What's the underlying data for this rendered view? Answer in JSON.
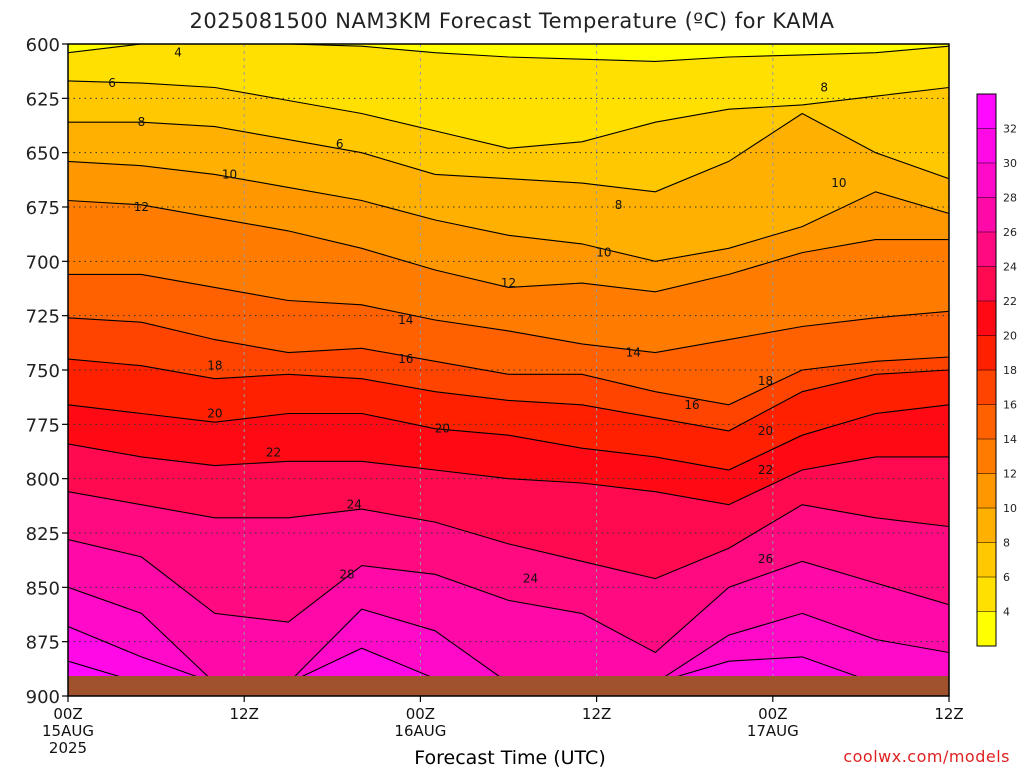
{
  "chart_data": {
    "type": "heatmap",
    "title": "2025081500 NAM3KM Forecast Temperature (ºC) for KAMA",
    "xlabel": "Forecast Time (UTC)",
    "ylabel": "",
    "source": "coolwx.com/models",
    "y_axis": {
      "ticks": [
        "600",
        "625",
        "650",
        "675",
        "700",
        "725",
        "750",
        "775",
        "800",
        "825",
        "850",
        "875",
        "900"
      ],
      "range": [
        600,
        900
      ]
    },
    "x_axis": {
      "ticks": [
        {
          "time": "00Z",
          "date": "15AUG",
          "year": "2025"
        },
        {
          "time": "12Z",
          "date": "",
          "year": ""
        },
        {
          "time": "00Z",
          "date": "16AUG",
          "year": ""
        },
        {
          "time": "12Z",
          "date": "",
          "year": ""
        },
        {
          "time": "00Z",
          "date": "17AUG",
          "year": ""
        },
        {
          "time": "12Z",
          "date": "",
          "year": ""
        }
      ],
      "range_hours": [
        0,
        60
      ]
    },
    "colorbar": {
      "levels": [
        2,
        4,
        6,
        8,
        10,
        12,
        14,
        16,
        18,
        20,
        22,
        24,
        26,
        28,
        30,
        32,
        34
      ],
      "tick_labels": [
        "4",
        "6",
        "8",
        "10",
        "12",
        "14",
        "16",
        "18",
        "20",
        "22",
        "24",
        "26",
        "28",
        "30",
        "32"
      ],
      "colors": [
        "#ffff00",
        "#ffe000",
        "#ffc800",
        "#ffb000",
        "#ff9800",
        "#ff7c00",
        "#ff6000",
        "#ff4400",
        "#ff2000",
        "#ff0a14",
        "#ff0a50",
        "#ff0a80",
        "#ff0aa8",
        "#ff0ac8",
        "#ff0ae6",
        "#ff0aff"
      ]
    },
    "contours": [
      {
        "value": 4,
        "pressure": [
          604,
          600,
          599,
          600,
          601,
          604,
          606,
          607,
          608,
          606,
          605,
          604,
          601
        ]
      },
      {
        "value": 6,
        "pressure": [
          617,
          618,
          620,
          626,
          632,
          640,
          648,
          645,
          636,
          630,
          628,
          624,
          620
        ]
      },
      {
        "value": 8,
        "pressure": [
          636,
          636,
          638,
          644,
          650,
          660,
          662,
          664,
          668,
          654,
          632,
          650,
          662
        ]
      },
      {
        "value": 10,
        "pressure": [
          654,
          656,
          660,
          666,
          672,
          681,
          688,
          692,
          700,
          694,
          684,
          668,
          678
        ]
      },
      {
        "value": 12,
        "pressure": [
          672,
          674,
          680,
          686,
          694,
          704,
          712,
          710,
          714,
          706,
          696,
          690,
          690
        ]
      },
      {
        "value": 14,
        "pressure": [
          706,
          706,
          712,
          718,
          720,
          727,
          732,
          738,
          742,
          736,
          730,
          726,
          723
        ]
      },
      {
        "value": 16,
        "pressure": [
          726,
          728,
          736,
          742,
          740,
          746,
          752,
          752,
          760,
          766,
          750,
          746,
          744
        ]
      },
      {
        "value": 18,
        "pressure": [
          745,
          748,
          754,
          752,
          754,
          760,
          764,
          766,
          772,
          778,
          760,
          752,
          750
        ]
      },
      {
        "value": 20,
        "pressure": [
          766,
          770,
          774,
          770,
          770,
          777,
          780,
          786,
          790,
          796,
          780,
          770,
          766
        ]
      },
      {
        "value": 22,
        "pressure": [
          784,
          790,
          794,
          792,
          792,
          796,
          800,
          802,
          806,
          812,
          796,
          790,
          790
        ]
      },
      {
        "value": 24,
        "pressure": [
          806,
          812,
          818,
          818,
          814,
          820,
          830,
          838,
          846,
          832,
          812,
          818,
          822
        ]
      },
      {
        "value": 26,
        "pressure": [
          828,
          836,
          862,
          866,
          840,
          844,
          856,
          862,
          880,
          850,
          838,
          848,
          858
        ]
      },
      {
        "value": 28,
        "pressure": [
          850,
          862,
          894,
          894,
          860,
          870,
          894,
          894,
          894,
          872,
          862,
          874,
          880
        ]
      },
      {
        "value": 30,
        "pressure": [
          868,
          882,
          894,
          894,
          878,
          892,
          894,
          894,
          894,
          884,
          882,
          894,
          894
        ]
      },
      {
        "value": 32,
        "pressure": [
          884,
          894,
          894,
          894,
          892,
          894,
          894,
          894,
          894,
          892,
          894,
          894,
          894
        ]
      }
    ],
    "contour_labels": [
      {
        "text": "4",
        "hour": 7.5,
        "p": 604
      },
      {
        "text": "6",
        "hour": 3.0,
        "p": 618
      },
      {
        "text": "6",
        "hour": 18.5,
        "p": 646
      },
      {
        "text": "8",
        "hour": 5.0,
        "p": 636
      },
      {
        "text": "8",
        "hour": 37.5,
        "p": 674
      },
      {
        "text": "8",
        "hour": 51.5,
        "p": 620
      },
      {
        "text": "10",
        "hour": 11.0,
        "p": 660
      },
      {
        "text": "10",
        "hour": 36.5,
        "p": 696
      },
      {
        "text": "10",
        "hour": 52.5,
        "p": 664
      },
      {
        "text": "12",
        "hour": 5.0,
        "p": 675
      },
      {
        "text": "12",
        "hour": 30.0,
        "p": 710
      },
      {
        "text": "14",
        "hour": 23.0,
        "p": 727
      },
      {
        "text": "14",
        "hour": 38.5,
        "p": 742
      },
      {
        "text": "16",
        "hour": 23.0,
        "p": 745
      },
      {
        "text": "16",
        "hour": 42.5,
        "p": 766
      },
      {
        "text": "18",
        "hour": 10.0,
        "p": 748
      },
      {
        "text": "18",
        "hour": 47.5,
        "p": 755
      },
      {
        "text": "20",
        "hour": 10.0,
        "p": 770
      },
      {
        "text": "20",
        "hour": 25.5,
        "p": 777
      },
      {
        "text": "20",
        "hour": 47.5,
        "p": 778
      },
      {
        "text": "22",
        "hour": 14.0,
        "p": 788
      },
      {
        "text": "22",
        "hour": 47.5,
        "p": 796
      },
      {
        "text": "24",
        "hour": 19.5,
        "p": 812
      },
      {
        "text": "24",
        "hour": 31.5,
        "p": 846
      },
      {
        "text": "26",
        "hour": 47.5,
        "p": 837
      },
      {
        "text": "28",
        "hour": 19.0,
        "p": 844
      }
    ],
    "terrain_color": "#a0522d"
  }
}
